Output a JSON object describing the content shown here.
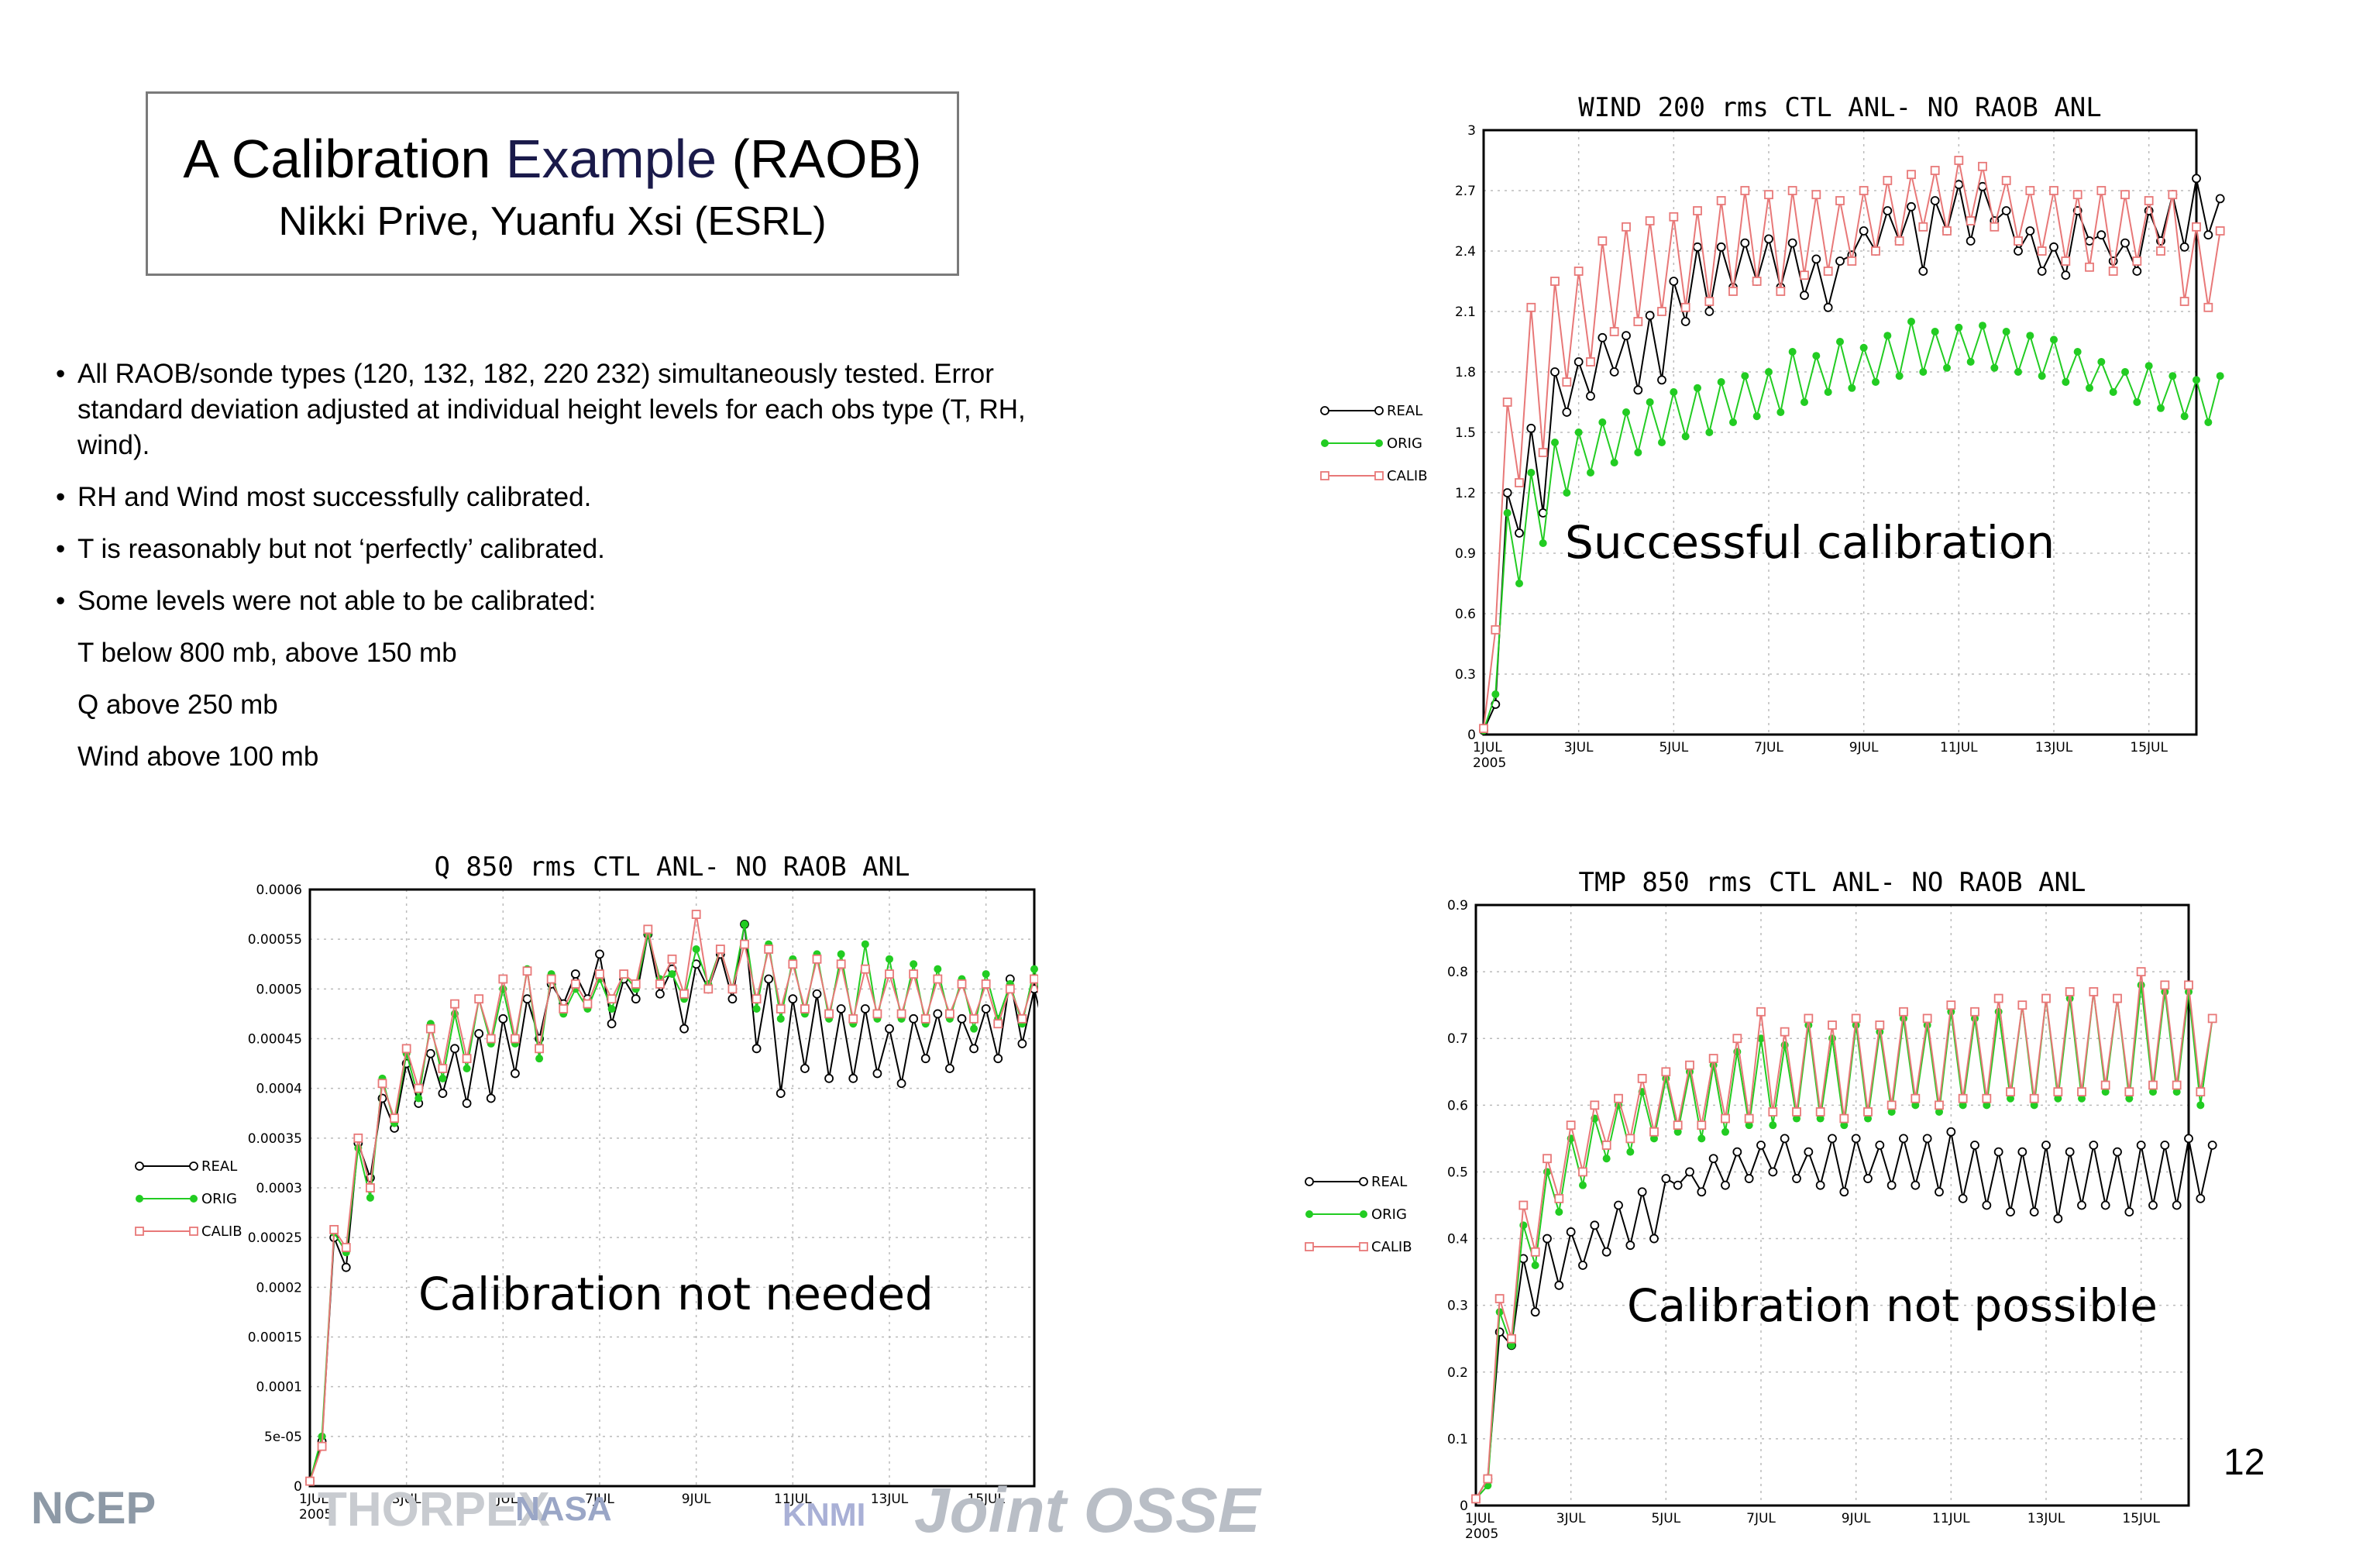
{
  "slide": {
    "title_part1": "A Calibration ",
    "title_part2": "Example",
    "title_part3": " (RAOB)",
    "subtitle": "Nikki Prive, Yuanfu Xsi (ESRL)",
    "bullets": [
      "All RAOB/sonde types (120, 132, 182, 220 232) simultaneously tested. Error standard deviation adjusted at individual height levels for each obs type (T, RH, wind).",
      "RH and Wind most successfully calibrated.",
      "T is reasonably but not ‘perfectly’ calibrated.",
      "Some levels were not able to be calibrated:"
    ],
    "sub_items": [
      "T below 800 mb, above 150 mb",
      "Q above 250 mb",
      "Wind above 100 mb"
    ],
    "page_number": "12",
    "logos": [
      "NCEP",
      "THORPEX",
      "NASA",
      "KNMI",
      "Joint OSSE"
    ]
  },
  "chart_data": [
    {
      "id": "wind",
      "type": "line",
      "title": "WIND 200 rms CTL ANL- NO RAOB ANL",
      "annotation": "Successful calibration",
      "ylim": [
        0,
        3
      ],
      "yticks": [
        "0",
        "0.3",
        "0.6",
        "0.9",
        "1.2",
        "1.5",
        "1.8",
        "2.1",
        "2.4",
        "2.7",
        "3"
      ],
      "xticks": [
        "1JUL",
        "3JUL",
        "5JUL",
        "7JUL",
        "9JUL",
        "11JUL",
        "13JUL",
        "15JUL"
      ],
      "xtick_year": "2005",
      "xlim": [
        1,
        16
      ],
      "legend": [
        "REAL",
        "ORIG",
        "CALIB"
      ],
      "series": [
        {
          "name": "REAL",
          "color": "#000000",
          "marker": "open-circle",
          "peaks": [
            0.02,
            1.2,
            1.52,
            1.8,
            1.85,
            1.97,
            1.98,
            2.08,
            2.25,
            2.42,
            2.42,
            2.44,
            2.46,
            2.44,
            2.36,
            2.35,
            2.5,
            2.6,
            2.62,
            2.65,
            2.73,
            2.72,
            2.6,
            2.5,
            2.42,
            2.6,
            2.48,
            2.44,
            2.6,
            2.68,
            2.76,
            2.66
          ],
          "troughs": [
            0.15,
            1.0,
            1.1,
            1.6,
            1.68,
            1.8,
            1.71,
            1.76,
            2.05,
            2.1,
            2.22,
            2.25,
            2.22,
            2.18,
            2.12,
            2.38,
            2.4,
            2.45,
            2.3,
            2.5,
            2.45,
            2.55,
            2.4,
            2.3,
            2.28,
            2.45,
            2.35,
            2.3,
            2.45,
            2.42,
            2.48
          ]
        },
        {
          "name": "ORIG",
          "color": "#22cc22",
          "marker": "filled-circle",
          "peaks": [
            0.02,
            1.1,
            1.3,
            1.45,
            1.5,
            1.55,
            1.6,
            1.65,
            1.7,
            1.72,
            1.75,
            1.78,
            1.8,
            1.9,
            1.88,
            1.95,
            1.92,
            1.98,
            2.05,
            2.0,
            2.02,
            2.03,
            2.0,
            1.98,
            1.96,
            1.9,
            1.85,
            1.8,
            1.83,
            1.78,
            1.76,
            1.78
          ],
          "troughs": [
            0.2,
            0.75,
            0.95,
            1.2,
            1.3,
            1.35,
            1.4,
            1.45,
            1.48,
            1.5,
            1.55,
            1.58,
            1.6,
            1.65,
            1.7,
            1.72,
            1.75,
            1.78,
            1.8,
            1.82,
            1.85,
            1.82,
            1.8,
            1.78,
            1.75,
            1.72,
            1.7,
            1.65,
            1.62,
            1.58,
            1.55
          ]
        },
        {
          "name": "CALIB",
          "color": "#e87878",
          "marker": "open-square",
          "peaks": [
            0.03,
            1.65,
            2.12,
            2.25,
            2.3,
            2.45,
            2.52,
            2.55,
            2.57,
            2.6,
            2.65,
            2.7,
            2.68,
            2.7,
            2.68,
            2.65,
            2.7,
            2.75,
            2.78,
            2.8,
            2.85,
            2.82,
            2.75,
            2.7,
            2.7,
            2.68,
            2.7,
            2.68,
            2.65,
            2.68,
            2.52,
            2.5
          ],
          "troughs": [
            0.52,
            1.25,
            1.4,
            1.75,
            1.85,
            2.0,
            2.05,
            2.1,
            2.12,
            2.15,
            2.2,
            2.25,
            2.2,
            2.28,
            2.3,
            2.35,
            2.4,
            2.45,
            2.52,
            2.5,
            2.55,
            2.52,
            2.45,
            2.4,
            2.35,
            2.32,
            2.3,
            2.35,
            2.4,
            2.15,
            2.12
          ]
        }
      ]
    },
    {
      "id": "q",
      "type": "line",
      "title": "Q 850 rms CTL ANL- NO RAOB ANL",
      "annotation": "Calibration not needed",
      "ylim": [
        0,
        0.0006
      ],
      "yticks": [
        "0",
        "5e-05",
        "0.0001",
        "0.00015",
        "0.0002",
        "0.00025",
        "0.0003",
        "0.00035",
        "0.0004",
        "0.00045",
        "0.0005",
        "0.00055",
        "0.0006"
      ],
      "xticks": [
        "1JUL",
        "3JUL",
        "5JUL",
        "7JUL",
        "9JUL",
        "11JUL",
        "13JUL",
        "15JUL"
      ],
      "xtick_year": "2005",
      "xlim": [
        1,
        16
      ],
      "legend": [
        "REAL",
        "ORIG",
        "CALIB"
      ],
      "series": [
        {
          "name": "REAL",
          "color": "#000000",
          "marker": "open-circle",
          "peaks": [
            5e-06,
            0.00025,
            0.000345,
            0.00039,
            0.000425,
            0.000435,
            0.00044,
            0.000455,
            0.00047,
            0.00049,
            0.000505,
            0.000515,
            0.000535,
            0.00051,
            0.000555,
            0.00052,
            0.000525,
            0.000535,
            0.000565,
            0.00051,
            0.00049,
            0.000495,
            0.00048,
            0.00048,
            0.00046,
            0.00047,
            0.000475,
            0.00047,
            0.00048,
            0.00051,
            0.0005,
            0.000525
          ],
          "troughs": [
            4.5e-05,
            0.00022,
            0.00031,
            0.00036,
            0.000385,
            0.000395,
            0.000385,
            0.00039,
            0.000415,
            0.00045,
            0.000485,
            0.00049,
            0.000465,
            0.00049,
            0.000495,
            0.00046,
            0.0005,
            0.00049,
            0.00044,
            0.000395,
            0.00042,
            0.00041,
            0.00041,
            0.000415,
            0.000405,
            0.00043,
            0.00042,
            0.00044,
            0.00043,
            0.000445,
            0.00045
          ]
        },
        {
          "name": "ORIG",
          "color": "#22cc22",
          "marker": "filled-circle",
          "peaks": [
            5e-06,
            0.000255,
            0.00034,
            0.00041,
            0.000435,
            0.000465,
            0.000475,
            0.00049,
            0.0005,
            0.00052,
            0.000515,
            0.0005,
            0.00051,
            0.000515,
            0.000555,
            0.000515,
            0.00054,
            0.00054,
            0.000565,
            0.000545,
            0.00053,
            0.000535,
            0.000535,
            0.000545,
            0.00053,
            0.000525,
            0.00052,
            0.00051,
            0.000515,
            0.000505,
            0.00052,
            0.000525
          ],
          "troughs": [
            5e-05,
            0.000235,
            0.00029,
            0.000365,
            0.00039,
            0.00041,
            0.00042,
            0.000445,
            0.000445,
            0.00043,
            0.000475,
            0.00048,
            0.00048,
            0.0005,
            0.00051,
            0.00049,
            0.000505,
            0.0005,
            0.00048,
            0.00047,
            0.000475,
            0.00047,
            0.000465,
            0.00047,
            0.00047,
            0.000465,
            0.00047,
            0.00046,
            0.00047,
            0.000465,
            0.00047
          ]
        },
        {
          "name": "CALIB",
          "color": "#e87878",
          "marker": "open-square",
          "peaks": [
            5e-06,
            0.000258,
            0.00035,
            0.000405,
            0.00044,
            0.00046,
            0.000485,
            0.00049,
            0.00051,
            0.000518,
            0.00051,
            0.000505,
            0.000515,
            0.000515,
            0.00056,
            0.00053,
            0.000575,
            0.00054,
            0.000545,
            0.00054,
            0.000525,
            0.00053,
            0.000525,
            0.00052,
            0.000515,
            0.000515,
            0.00051,
            0.000505,
            0.000505,
            0.0005,
            0.00051,
            0.00052
          ],
          "troughs": [
            4e-05,
            0.00024,
            0.0003,
            0.00037,
            0.0004,
            0.00042,
            0.00043,
            0.00045,
            0.00045,
            0.00044,
            0.00048,
            0.000485,
            0.00049,
            0.000505,
            0.000505,
            0.000495,
            0.0005,
            0.0005,
            0.00049,
            0.00048,
            0.00048,
            0.000475,
            0.00047,
            0.000475,
            0.000475,
            0.00047,
            0.000475,
            0.00047,
            0.000465,
            0.00047,
            0.00047
          ]
        }
      ]
    },
    {
      "id": "tmp",
      "type": "line",
      "title": "TMP 850 rms CTL ANL- NO RAOB ANL",
      "annotation": "Calibration not possible",
      "ylim": [
        0,
        0.9
      ],
      "yticks": [
        "0",
        "0.1",
        "0.2",
        "0.3",
        "0.4",
        "0.5",
        "0.6",
        "0.7",
        "0.8",
        "0.9"
      ],
      "xticks": [
        "1JUL",
        "3JUL",
        "5JUL",
        "7JUL",
        "9JUL",
        "11JUL",
        "13JUL",
        "15JUL"
      ],
      "xtick_year": "2005",
      "xlim": [
        1,
        16
      ],
      "legend": [
        "REAL",
        "ORIG",
        "CALIB"
      ],
      "series": [
        {
          "name": "REAL",
          "color": "#000000",
          "marker": "open-circle",
          "peaks": [
            0.01,
            0.26,
            0.37,
            0.4,
            0.41,
            0.42,
            0.45,
            0.47,
            0.49,
            0.5,
            0.52,
            0.53,
            0.54,
            0.55,
            0.53,
            0.55,
            0.55,
            0.54,
            0.55,
            0.55,
            0.56,
            0.54,
            0.53,
            0.53,
            0.54,
            0.53,
            0.54,
            0.53,
            0.54,
            0.54,
            0.55,
            0.54
          ],
          "troughs": [
            0.04,
            0.24,
            0.29,
            0.33,
            0.36,
            0.38,
            0.39,
            0.4,
            0.48,
            0.47,
            0.48,
            0.49,
            0.5,
            0.49,
            0.48,
            0.47,
            0.49,
            0.48,
            0.48,
            0.47,
            0.46,
            0.45,
            0.44,
            0.44,
            0.43,
            0.45,
            0.45,
            0.44,
            0.45,
            0.45,
            0.46
          ]
        },
        {
          "name": "ORIG",
          "color": "#22cc22",
          "marker": "filled-circle",
          "peaks": [
            0.01,
            0.29,
            0.42,
            0.5,
            0.55,
            0.58,
            0.6,
            0.62,
            0.64,
            0.65,
            0.66,
            0.68,
            0.7,
            0.69,
            0.72,
            0.7,
            0.72,
            0.71,
            0.73,
            0.72,
            0.74,
            0.73,
            0.74,
            0.75,
            0.76,
            0.76,
            0.77,
            0.76,
            0.78,
            0.77,
            0.77,
            0.73
          ],
          "troughs": [
            0.03,
            0.24,
            0.36,
            0.44,
            0.48,
            0.52,
            0.53,
            0.55,
            0.56,
            0.55,
            0.56,
            0.57,
            0.57,
            0.58,
            0.58,
            0.57,
            0.58,
            0.59,
            0.6,
            0.59,
            0.6,
            0.6,
            0.61,
            0.6,
            0.61,
            0.61,
            0.62,
            0.61,
            0.62,
            0.62,
            0.6
          ]
        },
        {
          "name": "CALIB",
          "color": "#e87878",
          "marker": "open-square",
          "peaks": [
            0.01,
            0.31,
            0.45,
            0.52,
            0.57,
            0.6,
            0.61,
            0.64,
            0.65,
            0.66,
            0.67,
            0.7,
            0.74,
            0.71,
            0.73,
            0.72,
            0.73,
            0.72,
            0.74,
            0.73,
            0.75,
            0.74,
            0.76,
            0.75,
            0.76,
            0.77,
            0.77,
            0.76,
            0.8,
            0.78,
            0.78,
            0.73
          ],
          "troughs": [
            0.04,
            0.25,
            0.38,
            0.46,
            0.5,
            0.54,
            0.55,
            0.56,
            0.57,
            0.57,
            0.58,
            0.58,
            0.59,
            0.59,
            0.59,
            0.58,
            0.59,
            0.6,
            0.61,
            0.6,
            0.61,
            0.61,
            0.62,
            0.61,
            0.62,
            0.62,
            0.63,
            0.62,
            0.63,
            0.63,
            0.62
          ]
        }
      ]
    }
  ]
}
